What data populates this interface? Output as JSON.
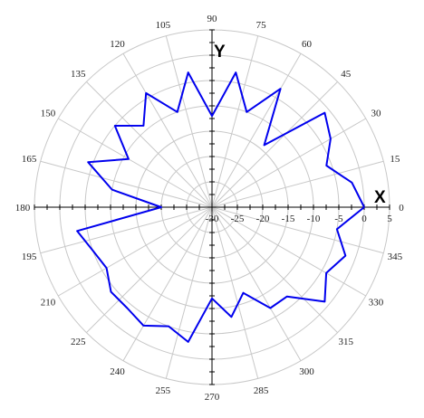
{
  "chart_data": {
    "type": "line",
    "projection": "polar",
    "angle_unit": "degrees",
    "angle_ticks": [
      0,
      15,
      30,
      45,
      60,
      75,
      90,
      105,
      120,
      135,
      150,
      165,
      180,
      195,
      210,
      225,
      240,
      255,
      270,
      285,
      300,
      315,
      330,
      345
    ],
    "angle_tick_labels": [
      "0",
      "15",
      "30",
      "45",
      "60",
      "75",
      "90",
      "105",
      "120",
      "135",
      "150",
      "165",
      "180",
      "195",
      "210",
      "225",
      "240",
      "255",
      "270",
      "285",
      "300",
      "315",
      "330",
      "345"
    ],
    "radial_range": [
      -30,
      5
    ],
    "radial_ticks": [
      -30,
      -25,
      -20,
      -15,
      -10,
      -5,
      0,
      5
    ],
    "radial_tick_labels": [
      "-30",
      "-25",
      "-20",
      "-15",
      "-10",
      "-5",
      "0",
      "5"
    ],
    "x_axis_label": "X",
    "y_axis_label": "Y",
    "grid": true,
    "series": [
      {
        "color": "#0000ee",
        "theta": [
          0,
          10,
          20,
          30,
          40,
          50,
          60,
          70,
          80,
          90,
          100,
          110,
          120,
          130,
          140,
          150,
          160,
          170,
          180,
          190,
          200,
          210,
          220,
          230,
          240,
          250,
          260,
          270,
          280,
          290,
          300,
          310,
          320,
          330,
          340,
          350,
          360
        ],
        "r": [
          0,
          -2,
          -6,
          -3,
          -1,
          -14,
          -3,
          -10,
          -3,
          -12,
          -3,
          -10,
          -4,
          -9,
          -5,
          -11,
          -4,
          -10,
          -20,
          -3,
          -5,
          -6,
          -4,
          -4,
          -3,
          -5,
          -3,
          -12,
          -8,
          -12,
          -7,
          -7,
          -1,
          -4,
          -2,
          -5,
          0
        ]
      }
    ]
  }
}
